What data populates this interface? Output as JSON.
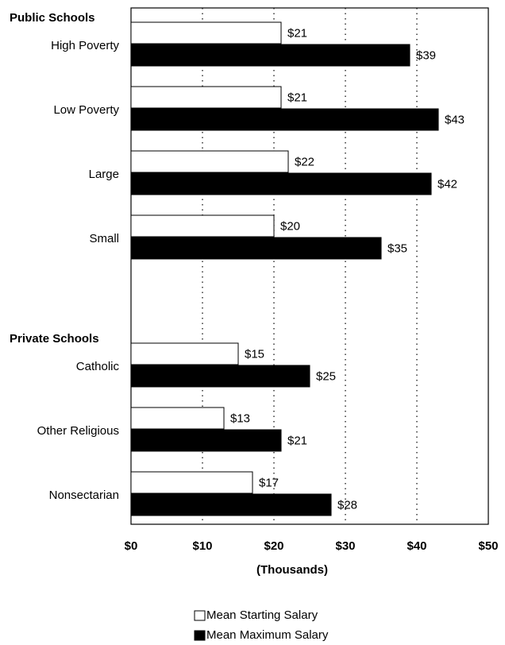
{
  "chart_data": {
    "type": "hbar",
    "groups": [
      {
        "name": "Public Schools",
        "categories": [
          "High Poverty",
          "Low Poverty",
          "Large",
          "Small"
        ]
      },
      {
        "name": "Private Schools",
        "categories": [
          "Catholic",
          "Other Religious",
          "Nonsectarian"
        ]
      }
    ],
    "series": [
      {
        "name": "Mean Starting Salary",
        "color": "#ffffff",
        "values": [
          21,
          21,
          22,
          20,
          15,
          13,
          17
        ],
        "value_labels": [
          "$21",
          "$21",
          "$22",
          "$20",
          "$15",
          "$13",
          "$17"
        ]
      },
      {
        "name": "Mean Maximum Salary",
        "color": "#000000",
        "values": [
          39,
          43,
          42,
          35,
          25,
          21,
          28
        ],
        "value_labels": [
          "$39",
          "$43",
          "$42",
          "$35",
          "$25",
          "$21",
          "$28"
        ]
      }
    ],
    "xlabel": "(Thousands)",
    "xlim": [
      0,
      50
    ],
    "xticks": [
      {
        "value": 0,
        "label": "$0"
      },
      {
        "value": 10,
        "label": "$10"
      },
      {
        "value": 20,
        "label": "$20"
      },
      {
        "value": 30,
        "label": "$30"
      },
      {
        "value": 40,
        "label": "$40"
      },
      {
        "value": 50,
        "label": "$50"
      }
    ],
    "grid": true
  }
}
